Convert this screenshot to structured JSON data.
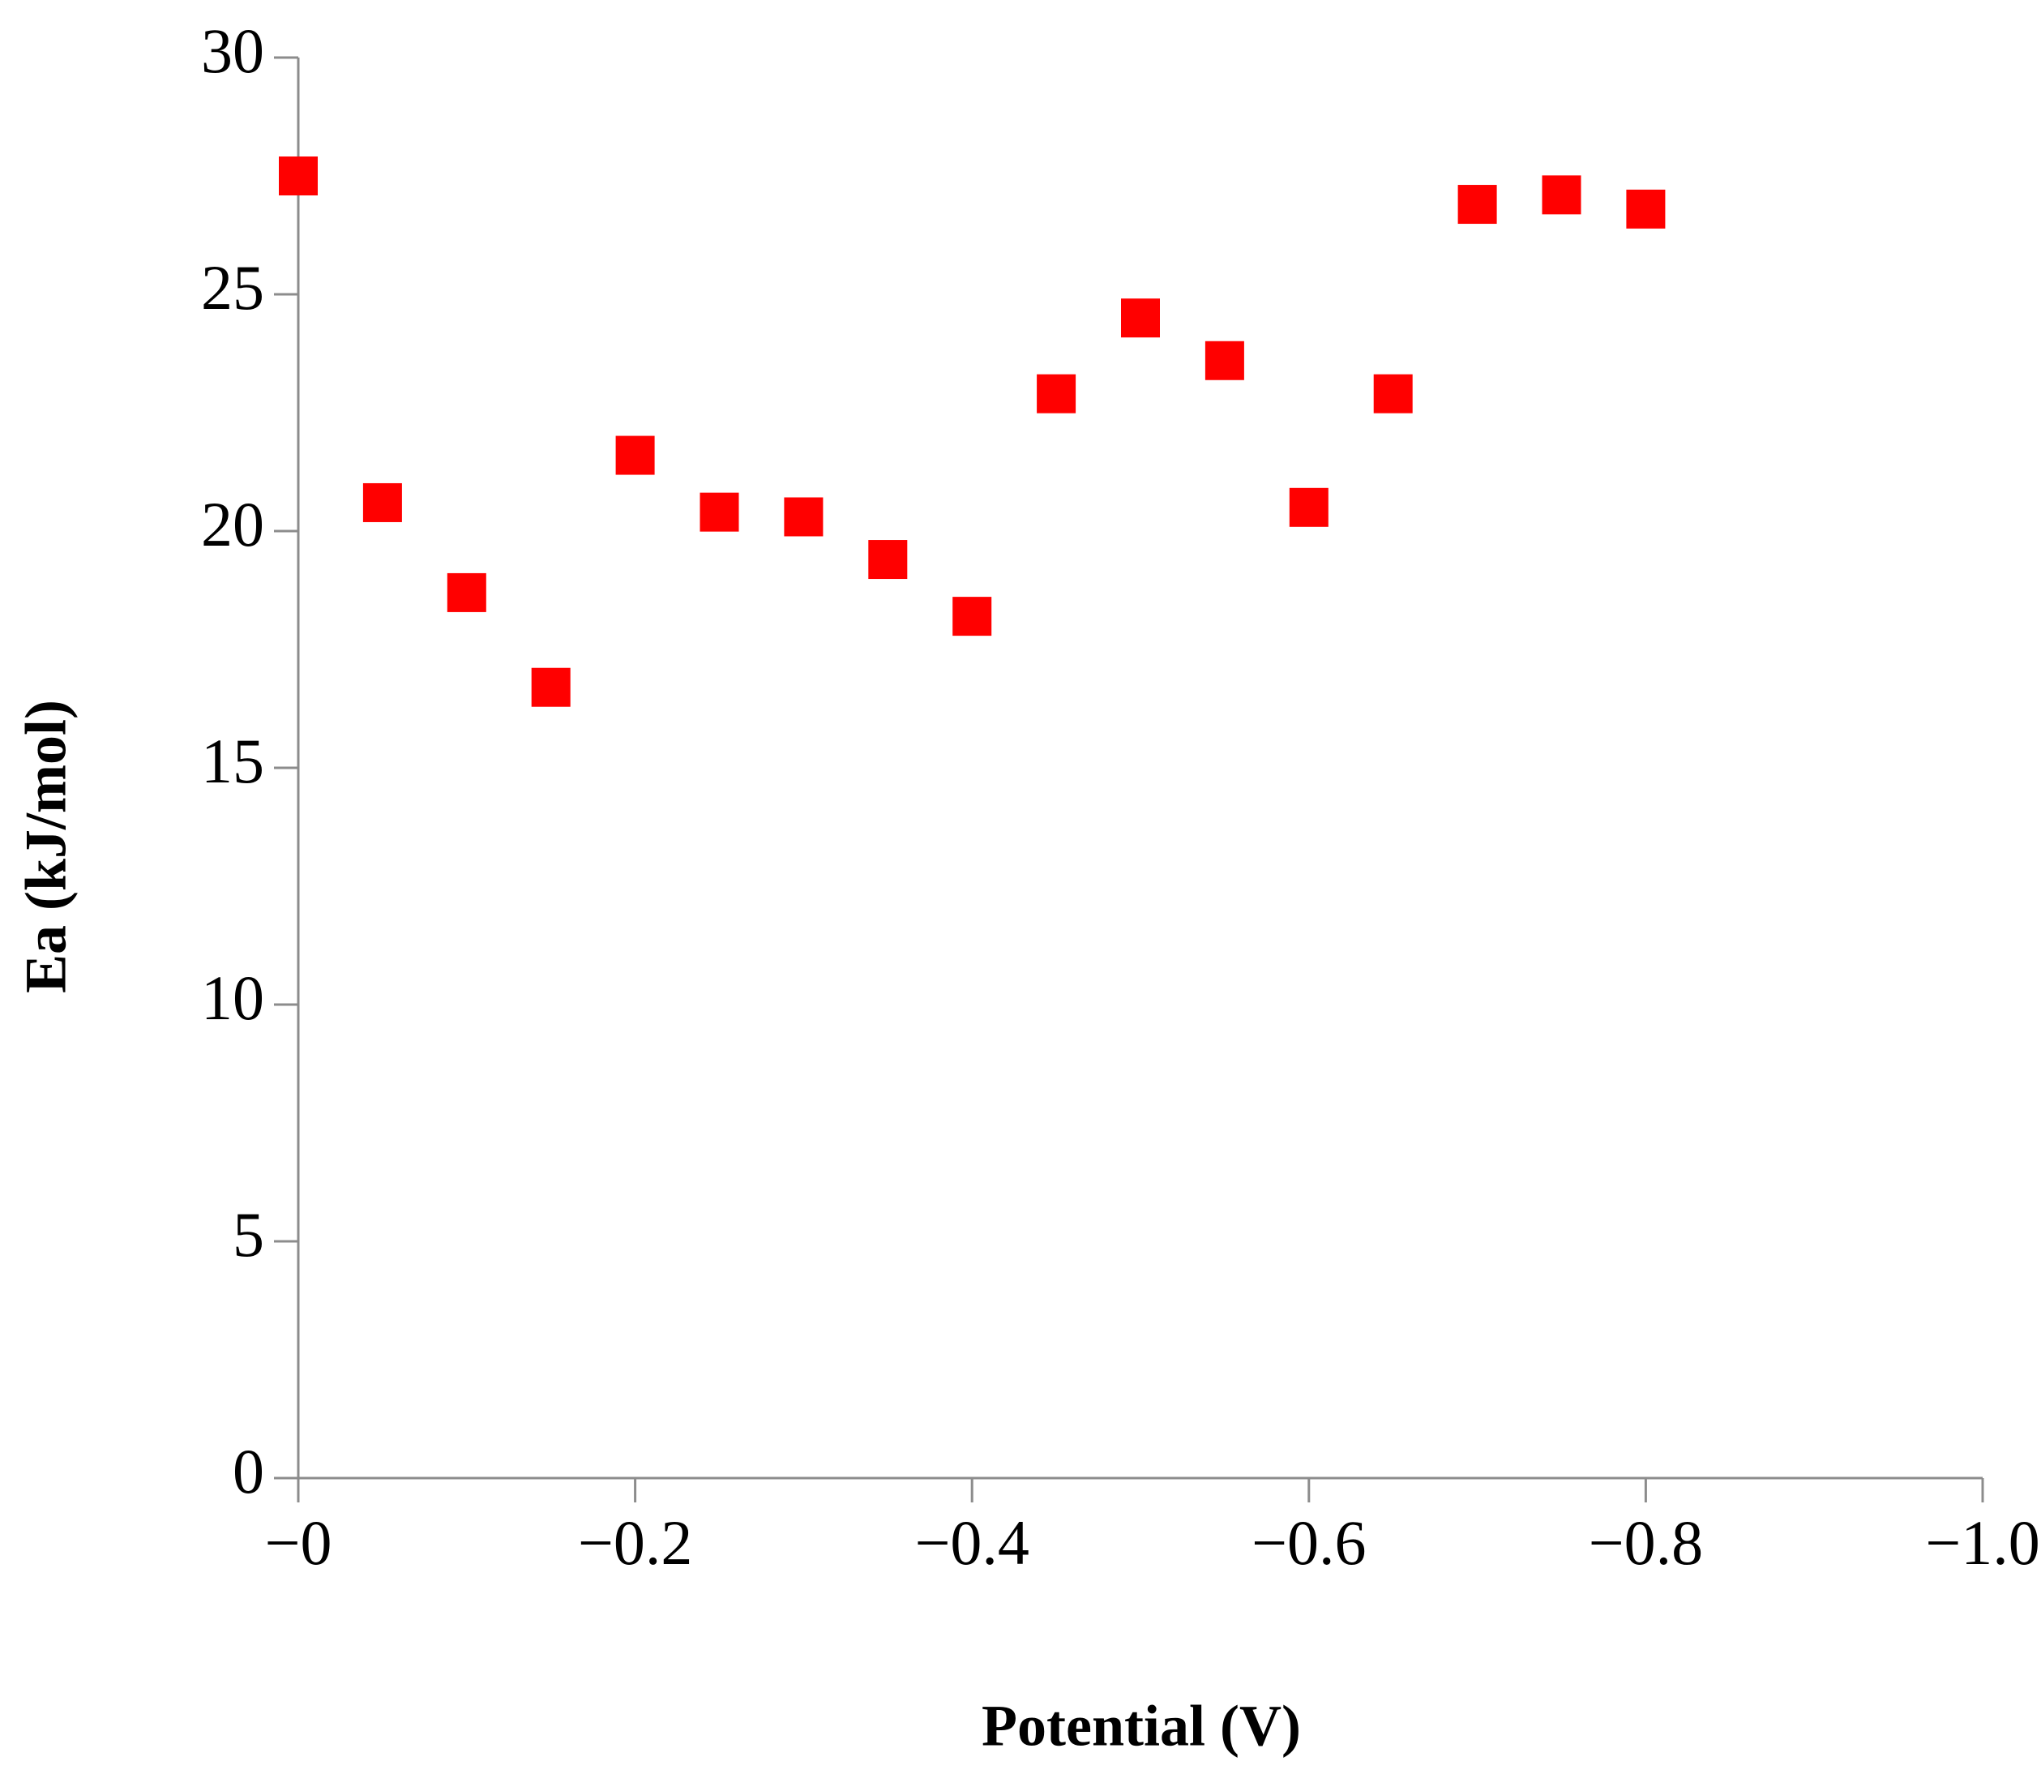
{
  "chart_data": {
    "type": "scatter",
    "x_label": "Potential (V)",
    "y_label": "Ea (kJ/mol)",
    "x": [
      0,
      -0.05,
      -0.1,
      -0.15,
      -0.2,
      -0.25,
      -0.3,
      -0.35,
      -0.4,
      -0.45,
      -0.5,
      -0.55,
      -0.6,
      -0.65,
      -0.7,
      -0.75,
      -0.8
    ],
    "values": [
      27.5,
      20.6,
      18.7,
      16.7,
      21.6,
      20.4,
      20.3,
      19.4,
      18.2,
      22.9,
      24.5,
      23.6,
      20.5,
      22.9,
      26.9,
      27.1,
      26.8
    ],
    "color": "#ff0000",
    "xlim": [
      0,
      -1.0
    ],
    "xticks": [
      {
        "value": 0,
        "label": "−0"
      },
      {
        "value": -0.2,
        "label": "−0.2"
      },
      {
        "value": -0.4,
        "label": "−0.4"
      },
      {
        "value": -0.6,
        "label": "−0.6"
      },
      {
        "value": -0.8,
        "label": "−0.8"
      },
      {
        "value": -1.0,
        "label": "−1.0"
      }
    ],
    "ylim": [
      0,
      30
    ],
    "yticks": [
      0,
      5,
      10,
      15,
      20,
      25,
      30
    ],
    "grid": false
  }
}
